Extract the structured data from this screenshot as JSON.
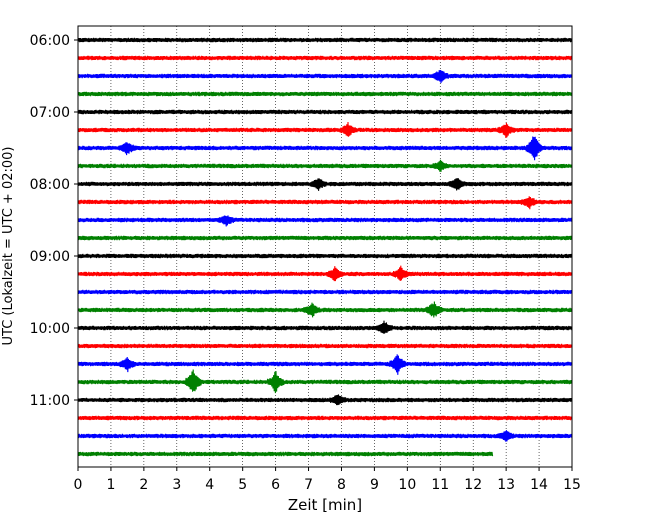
{
  "chart_data": {
    "type": "line",
    "subtype": "seismogram-helicorder",
    "xlabel": "Zeit  [min]",
    "ylabel": "UTC (Lokalzeit = UTC + 02:00)",
    "xlim": [
      0,
      15
    ],
    "x_ticks": [
      "0",
      "1",
      "2",
      "3",
      "4",
      "5",
      "6",
      "7",
      "8",
      "9",
      "10",
      "11",
      "12",
      "13",
      "14",
      "15"
    ],
    "y_ticks": [
      {
        "label": "06:00",
        "row": 0
      },
      {
        "label": "07:00",
        "row": 4
      },
      {
        "label": "08:00",
        "row": 8
      },
      {
        "label": "09:00",
        "row": 12
      },
      {
        "label": "10:00",
        "row": 16
      },
      {
        "label": "11:00",
        "row": 20
      }
    ],
    "grid": "vertical-dotted",
    "colors": [
      "#000000",
      "#ff0000",
      "#0000ff",
      "#008000"
    ],
    "row_count": 24,
    "row_start": "06:00",
    "row_minutes": 15,
    "last_row_end_min": 12.6,
    "events": [
      {
        "row": 2,
        "minute": 11.0,
        "amp": 2
      },
      {
        "row": 5,
        "minute": 8.2,
        "amp": 2
      },
      {
        "row": 5,
        "minute": 13.0,
        "amp": 2
      },
      {
        "row": 6,
        "minute": 13.85,
        "amp": 4
      },
      {
        "row": 6,
        "minute": 1.5,
        "amp": 2
      },
      {
        "row": 7,
        "minute": 11.0,
        "amp": 1.5
      },
      {
        "row": 8,
        "minute": 7.3,
        "amp": 1.8
      },
      {
        "row": 8,
        "minute": 11.5,
        "amp": 1.8
      },
      {
        "row": 9,
        "minute": 13.7,
        "amp": 1.8
      },
      {
        "row": 10,
        "minute": 4.5,
        "amp": 1.5
      },
      {
        "row": 13,
        "minute": 7.8,
        "amp": 2
      },
      {
        "row": 13,
        "minute": 9.8,
        "amp": 2
      },
      {
        "row": 15,
        "minute": 10.8,
        "amp": 2.5
      },
      {
        "row": 15,
        "minute": 7.1,
        "amp": 2
      },
      {
        "row": 16,
        "minute": 9.3,
        "amp": 2
      },
      {
        "row": 18,
        "minute": 1.5,
        "amp": 2
      },
      {
        "row": 18,
        "minute": 9.7,
        "amp": 3
      },
      {
        "row": 19,
        "minute": 3.5,
        "amp": 4
      },
      {
        "row": 19,
        "minute": 6.0,
        "amp": 3
      },
      {
        "row": 20,
        "minute": 7.9,
        "amp": 1.6
      },
      {
        "row": 22,
        "minute": 13.0,
        "amp": 1.5
      }
    ]
  }
}
